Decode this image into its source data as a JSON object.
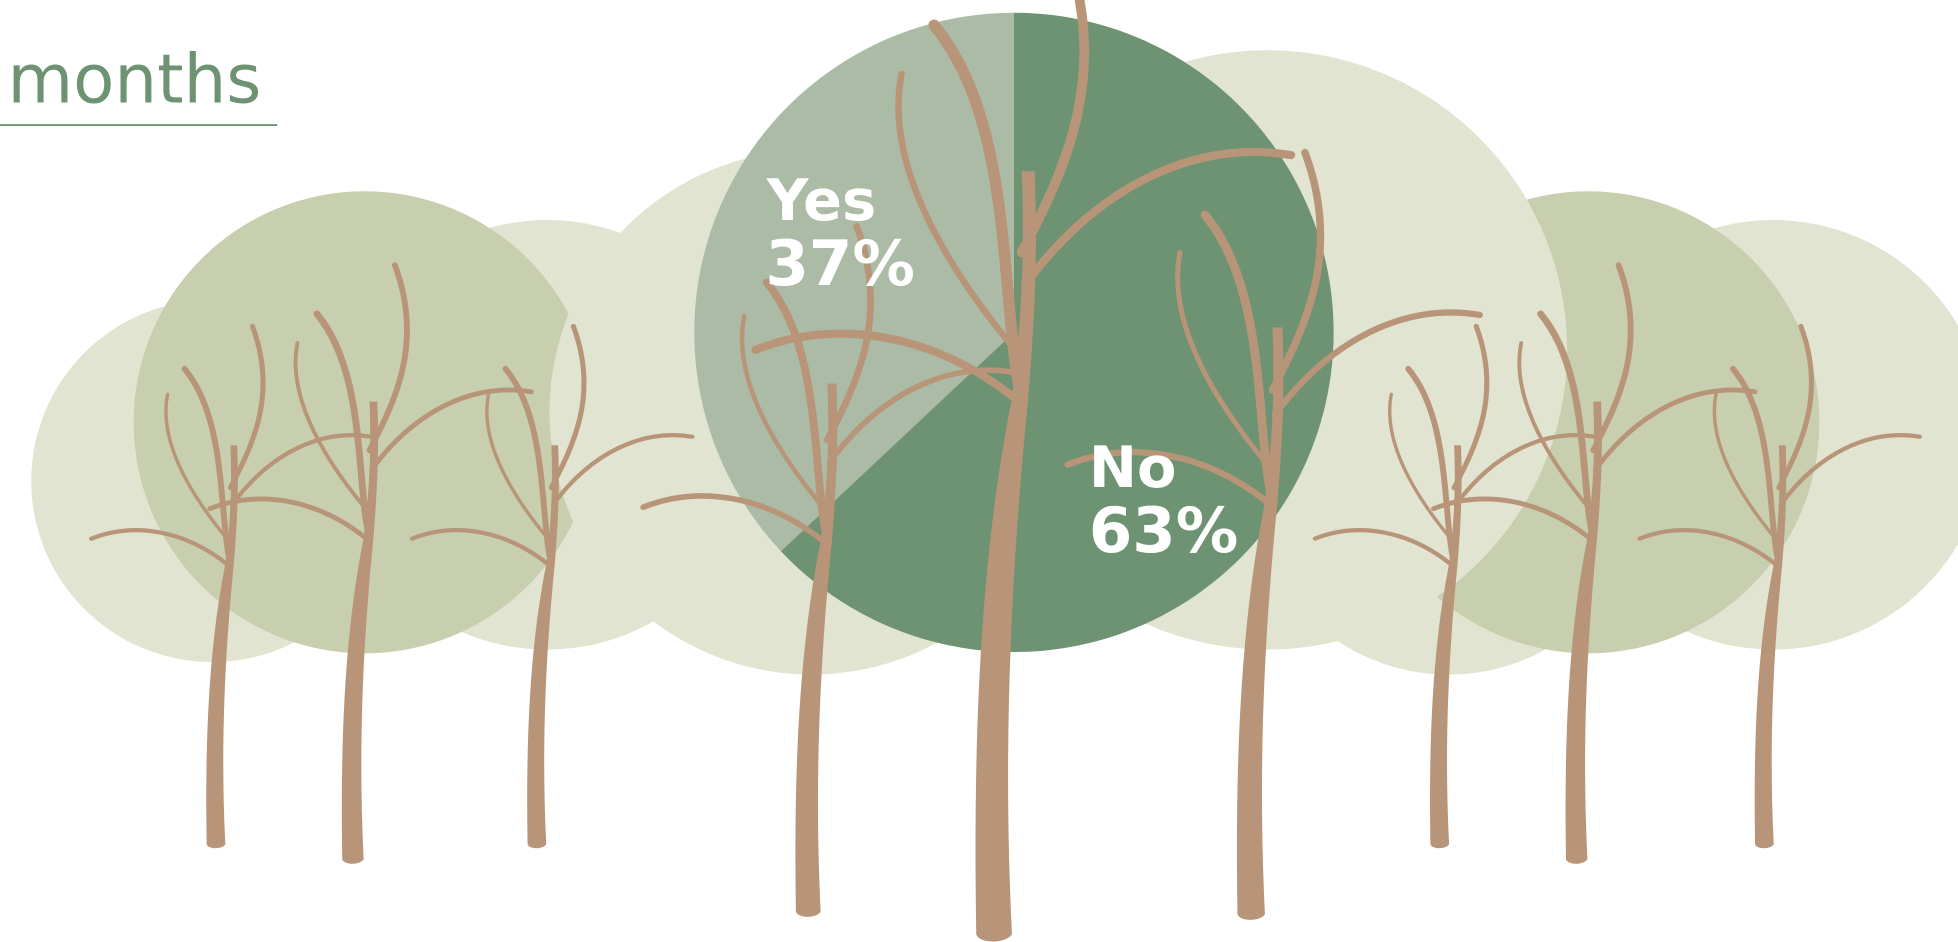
{
  "chart_data": {
    "type": "pie",
    "title": "months",
    "categories": [
      "Yes",
      "No"
    ],
    "values": [
      37,
      63
    ],
    "value_labels": [
      "37%",
      "63%"
    ],
    "colors": [
      "#abbba5",
      "#6e9372"
    ]
  }
}
